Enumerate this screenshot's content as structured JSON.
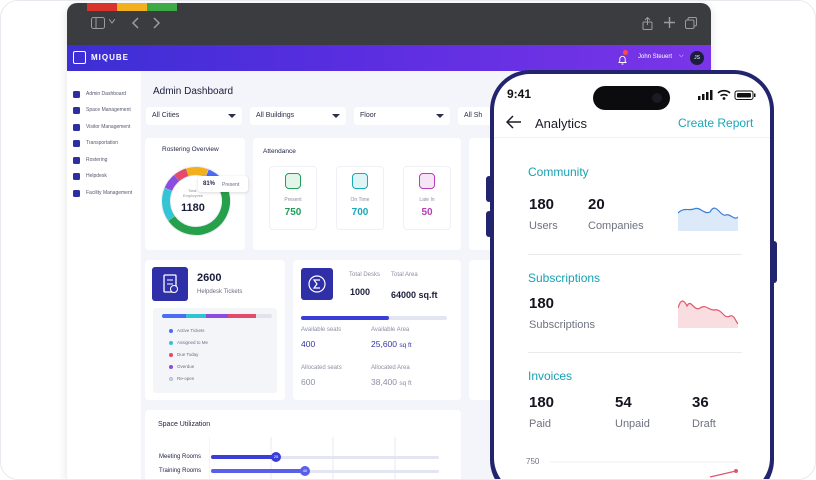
{
  "browser": {
    "tab_colors": [
      "#d9342b",
      "#f2b01e",
      "#3daa45"
    ],
    "app": {
      "logo_text": "MIQUBE",
      "user_name": "John Steuert",
      "user_initials": "JS",
      "caret": "⌵"
    },
    "sidebar": {
      "items": [
        {
          "label": "Admin Dashboard",
          "icon": "pie-chart-icon"
        },
        {
          "label": "Space Management",
          "icon": "grid-icon"
        },
        {
          "label": "Visitor Management",
          "icon": "id-card-icon"
        },
        {
          "label": "Transportation",
          "icon": "car-icon"
        },
        {
          "label": "Rostering",
          "icon": "calendar-icon"
        },
        {
          "label": "Helpdesk",
          "icon": "headset-icon"
        },
        {
          "label": "Facility Management",
          "icon": "building-icon"
        }
      ]
    },
    "main": {
      "title": "Admin Dashboard",
      "filters": [
        "All Cities",
        "All Buildings",
        "Floor",
        "All Sh"
      ],
      "rostering": {
        "title": "Rostering Overview",
        "total_label": "Total",
        "employees_label": "Employees",
        "total_value": "1180",
        "percent": "81%",
        "percent_label": "Present"
      },
      "attendance": {
        "title": "Attendance",
        "items": [
          {
            "label": "Present",
            "value": "750",
            "color": "#1f9e5a",
            "bg": "#e3f5ea"
          },
          {
            "label": "On Time",
            "value": "700",
            "color": "#18a9b7",
            "bg": "#dff4f6"
          },
          {
            "label": "Late In",
            "value": "50",
            "color": "#b63cb8",
            "bg": "#f6e4f7"
          }
        ]
      },
      "helpdesk": {
        "value": "2600",
        "label": "Helpdesk Tickets",
        "legend": [
          {
            "label": "Active Tickets",
            "color": "#4a6cf7"
          },
          {
            "label": "Assigned to Me",
            "color": "#2ec5d3"
          },
          {
            "label": "Due Today",
            "color": "#e34a6b"
          },
          {
            "label": "Overdue",
            "color": "#8a4de0"
          },
          {
            "label": "Re-open",
            "color": "#d8d9e0"
          }
        ]
      },
      "desks": {
        "total_desks_label": "Total Desks",
        "total_desks_value": "1000",
        "total_area_label": "Total Area",
        "total_area_value": "64000 sq.ft",
        "available_seats_label": "Available seats",
        "available_seats_value": "400",
        "available_area_label": "Available Area",
        "available_area_value": "25,600",
        "available_area_unit": "sq ft",
        "allocated_seats_label": "Allocated seats",
        "allocated_seats_value": "600",
        "allocated_area_label": "Allocated Area",
        "allocated_area_value": "38,400",
        "allocated_area_unit": "sq ft",
        "progress": 0.6
      },
      "space": {
        "title": "Space Utilization",
        "rows": [
          {
            "label": "Meeting Rooms",
            "value": "25",
            "fill": 0.27,
            "color": "#3b3dd8"
          },
          {
            "label": "Training Rooms",
            "value": "40",
            "fill": 0.4,
            "color": "#5b5ee8"
          }
        ]
      }
    }
  },
  "phone": {
    "time": "9:41",
    "nav": {
      "title": "Analytics",
      "action": "Create Report"
    },
    "sections": [
      {
        "title": "Community",
        "stats": [
          {
            "value": "180",
            "label": "Users"
          },
          {
            "value": "20",
            "label": "Companies"
          }
        ],
        "sparkline_color": "#3b7fd6"
      },
      {
        "title": "Subscriptions",
        "stats": [
          {
            "value": "180",
            "label": "Subscriptions"
          }
        ],
        "sparkline_color": "#e0566a"
      },
      {
        "title": "Invoices",
        "stats": [
          {
            "value": "180",
            "label": "Paid"
          },
          {
            "value": "54",
            "label": "Unpaid"
          },
          {
            "value": "36",
            "label": "Draft"
          }
        ]
      }
    ],
    "chart_tick": "750",
    "accent_color": "#16a2b4"
  }
}
